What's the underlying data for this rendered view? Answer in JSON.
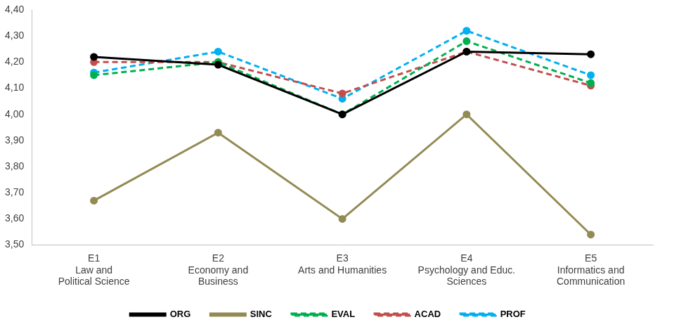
{
  "chart_data": {
    "type": "line",
    "categories": [
      [
        "E1",
        "Law and",
        "Political Science"
      ],
      [
        "E2",
        "Economy and",
        "Business"
      ],
      [
        "E3",
        "Arts and Humanities"
      ],
      [
        "E4",
        "Psychology and Educ.",
        "Sciences"
      ],
      [
        "E5",
        "Informatics and",
        "Communication"
      ]
    ],
    "series": [
      {
        "name": "ORG",
        "color": "#000000",
        "line_style": "solid",
        "marker": "circle",
        "values": [
          4.22,
          4.19,
          4.0,
          4.24,
          4.23
        ]
      },
      {
        "name": "SINC",
        "color": "#948a54",
        "line_style": "solid",
        "marker": "circle",
        "values": [
          3.67,
          3.93,
          3.6,
          4.0,
          3.54
        ]
      },
      {
        "name": "EVAL",
        "color": "#00b050",
        "line_style": "dashed",
        "marker": "circle",
        "values": [
          4.15,
          4.2,
          4.0,
          4.28,
          4.12
        ]
      },
      {
        "name": "ACAD",
        "color": "#c0504d",
        "line_style": "dashed",
        "marker": "circle",
        "values": [
          4.2,
          4.2,
          4.08,
          4.24,
          4.11
        ]
      },
      {
        "name": "PROF",
        "color": "#00b0f0",
        "line_style": "dashed",
        "marker": "circle",
        "values": [
          4.16,
          4.24,
          4.06,
          4.32,
          4.15
        ]
      }
    ],
    "ylim": [
      3.5,
      4.4
    ],
    "yticks": [
      {
        "value": 3.5,
        "label": "3,50"
      },
      {
        "value": 3.6,
        "label": "3,60"
      },
      {
        "value": 3.7,
        "label": "3,70"
      },
      {
        "value": 3.8,
        "label": "3,80"
      },
      {
        "value": 3.9,
        "label": "3,90"
      },
      {
        "value": 4.0,
        "label": "4,00"
      },
      {
        "value": 4.1,
        "label": "4,10"
      },
      {
        "value": 4.2,
        "label": "4,20"
      },
      {
        "value": 4.3,
        "label": "4,30"
      },
      {
        "value": 4.4,
        "label": "4,40"
      }
    ],
    "grid": false,
    "legend": "bottom"
  }
}
